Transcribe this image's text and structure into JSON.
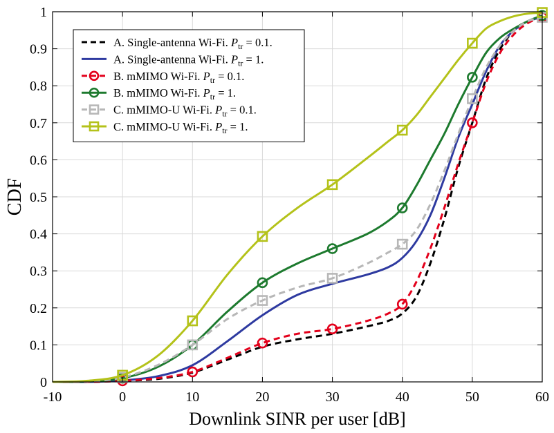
{
  "chart_data": {
    "type": "line",
    "title": "",
    "xlabel": "Downlink SINR per user [dB]",
    "ylabel": "CDF",
    "xlim": [
      -10,
      60
    ],
    "ylim": [
      0,
      1
    ],
    "xticks": [
      -10,
      0,
      10,
      20,
      30,
      40,
      50,
      60
    ],
    "yticks": [
      0,
      0.1,
      0.2,
      0.3,
      0.4,
      0.5,
      0.6,
      0.7,
      0.8,
      0.9,
      1
    ],
    "xtick_labels": [
      "-10",
      "0",
      "10",
      "20",
      "30",
      "40",
      "50",
      "60"
    ],
    "ytick_labels": [
      "0",
      "0.1",
      "0.2",
      "0.3",
      "0.4",
      "0.5",
      "0.6",
      "0.7",
      "0.8",
      "0.9",
      "1"
    ],
    "grid": true,
    "legend_position": "top-left",
    "series": [
      {
        "name": "A. Single-antenna Wi-Fi. Ptr = 0.1.",
        "legend_prefix": "A. Single-antenna Wi-Fi. ",
        "ptr_symbol": "P",
        "ptr_subscript": "tr",
        "legend_suffix": " = 0.1.",
        "color": "#000000",
        "dash": "dashed",
        "marker": "none",
        "x": [
          -10,
          -5,
          0,
          5,
          10,
          15,
          20,
          25,
          30,
          35,
          38,
          40,
          42,
          44,
          46,
          48,
          50,
          52,
          54,
          56,
          58,
          60
        ],
        "y": [
          0,
          0,
          0.003,
          0.008,
          0.025,
          0.06,
          0.095,
          0.115,
          0.13,
          0.15,
          0.165,
          0.185,
          0.23,
          0.32,
          0.44,
          0.58,
          0.7,
          0.82,
          0.9,
          0.95,
          0.975,
          0.985
        ]
      },
      {
        "name": "A. Single-antenna Wi-Fi. Ptr = 1.",
        "legend_prefix": "A. Single-antenna Wi-Fi. ",
        "ptr_symbol": "P",
        "ptr_subscript": "tr",
        "legend_suffix": " = 1.",
        "color": "#2e3aa0",
        "dash": "solid",
        "marker": "none",
        "x": [
          -10,
          -5,
          0,
          5,
          10,
          15,
          20,
          25,
          30,
          35,
          38,
          40,
          42,
          44,
          46,
          48,
          50,
          52,
          54,
          56,
          58,
          60
        ],
        "y": [
          0,
          0,
          0.004,
          0.015,
          0.045,
          0.11,
          0.18,
          0.235,
          0.265,
          0.29,
          0.31,
          0.335,
          0.38,
          0.45,
          0.55,
          0.66,
          0.75,
          0.84,
          0.91,
          0.95,
          0.975,
          0.985
        ]
      },
      {
        "name": "B. mMIMO Wi-Fi. Ptr = 0.1.",
        "legend_prefix": "B. mMIMO Wi-Fi. ",
        "ptr_symbol": "P",
        "ptr_subscript": "tr",
        "legend_suffix": " = 0.1.",
        "color": "#e3001b",
        "dash": "dashed",
        "marker": "circle",
        "x": [
          -10,
          -5,
          0,
          5,
          10,
          15,
          20,
          25,
          30,
          35,
          38,
          40,
          42,
          44,
          46,
          48,
          50,
          52,
          54,
          56,
          58,
          60
        ],
        "y": [
          0,
          0,
          0.003,
          0.01,
          0.027,
          0.065,
          0.105,
          0.13,
          0.143,
          0.165,
          0.185,
          0.21,
          0.27,
          0.36,
          0.47,
          0.59,
          0.7,
          0.81,
          0.89,
          0.94,
          0.97,
          0.985
        ],
        "marker_x": [
          0,
          10,
          20,
          30,
          40,
          50,
          60
        ],
        "marker_y": [
          0.003,
          0.027,
          0.105,
          0.143,
          0.21,
          0.7,
          0.985
        ]
      },
      {
        "name": "B. mMIMO Wi-Fi. Ptr = 1.",
        "legend_prefix": "B. mMIMO Wi-Fi. ",
        "ptr_symbol": "P",
        "ptr_subscript": "tr",
        "legend_suffix": " = 1.",
        "color": "#1d7a2e",
        "dash": "solid",
        "marker": "circle",
        "x": [
          -10,
          -5,
          0,
          5,
          10,
          15,
          20,
          25,
          30,
          35,
          38,
          40,
          42,
          44,
          46,
          48,
          50,
          52,
          54,
          56,
          58,
          60
        ],
        "y": [
          0,
          0.001,
          0.01,
          0.04,
          0.1,
          0.19,
          0.268,
          0.32,
          0.36,
          0.4,
          0.435,
          0.47,
          0.53,
          0.6,
          0.67,
          0.75,
          0.823,
          0.89,
          0.93,
          0.955,
          0.975,
          0.99
        ],
        "marker_x": [
          0,
          10,
          20,
          30,
          40,
          50,
          60
        ],
        "marker_y": [
          0.01,
          0.1,
          0.268,
          0.36,
          0.47,
          0.823,
          0.99
        ]
      },
      {
        "name": "C. mMIMO-U Wi-Fi. Ptr = 0.1.",
        "legend_prefix": "C. mMIMO-U Wi-Fi. ",
        "ptr_symbol": "P",
        "ptr_subscript": "tr",
        "legend_suffix": " = 0.1.",
        "color": "#b7b7b7",
        "dash": "dashed",
        "marker": "square",
        "x": [
          -10,
          -5,
          0,
          5,
          10,
          15,
          20,
          25,
          30,
          35,
          38,
          40,
          42,
          44,
          46,
          48,
          50,
          52,
          54,
          56,
          58,
          60
        ],
        "y": [
          0,
          0.001,
          0.012,
          0.045,
          0.1,
          0.17,
          0.22,
          0.255,
          0.28,
          0.32,
          0.35,
          0.372,
          0.41,
          0.48,
          0.57,
          0.67,
          0.765,
          0.85,
          0.91,
          0.95,
          0.975,
          0.985
        ],
        "marker_x": [
          0,
          10,
          20,
          30,
          40,
          50,
          60
        ],
        "marker_y": [
          0.012,
          0.1,
          0.22,
          0.28,
          0.372,
          0.765,
          0.985
        ]
      },
      {
        "name": "C. mMIMO-U Wi-Fi. Ptr = 1.",
        "legend_prefix": "C. mMIMO-U Wi-Fi. ",
        "ptr_symbol": "P",
        "ptr_subscript": "tr",
        "legend_suffix": " = 1.",
        "color": "#b4c21a",
        "dash": "solid",
        "marker": "square",
        "x": [
          -10,
          -5,
          0,
          5,
          10,
          15,
          20,
          25,
          30,
          35,
          38,
          40,
          42,
          44,
          46,
          48,
          50,
          52,
          54,
          56,
          58,
          60
        ],
        "y": [
          0,
          0.003,
          0.018,
          0.07,
          0.165,
          0.29,
          0.393,
          0.47,
          0.533,
          0.605,
          0.65,
          0.68,
          0.72,
          0.77,
          0.82,
          0.87,
          0.915,
          0.955,
          0.975,
          0.988,
          0.995,
          0.998
        ],
        "marker_x": [
          0,
          10,
          20,
          30,
          40,
          50,
          60
        ],
        "marker_y": [
          0.018,
          0.165,
          0.393,
          0.533,
          0.68,
          0.915,
          0.998
        ]
      }
    ]
  }
}
